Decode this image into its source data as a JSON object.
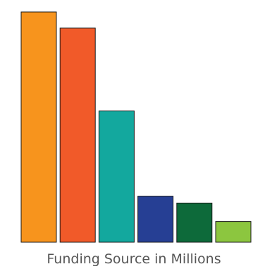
{
  "chart_data": {
    "type": "bar",
    "title": "",
    "xlabel": "Funding Source in Millions",
    "ylabel": "",
    "grid": false,
    "legend": "none",
    "ylim": [
      0,
      100
    ],
    "bars": [
      {
        "value": 100,
        "color": "#f7941d"
      },
      {
        "value": 93,
        "color": "#f15a29"
      },
      {
        "value": 57,
        "color": "#13a89e"
      },
      {
        "value": 20,
        "color": "#263f94"
      },
      {
        "value": 17,
        "color": "#0d6a3a"
      },
      {
        "value": 9,
        "color": "#8cc63f"
      }
    ]
  }
}
